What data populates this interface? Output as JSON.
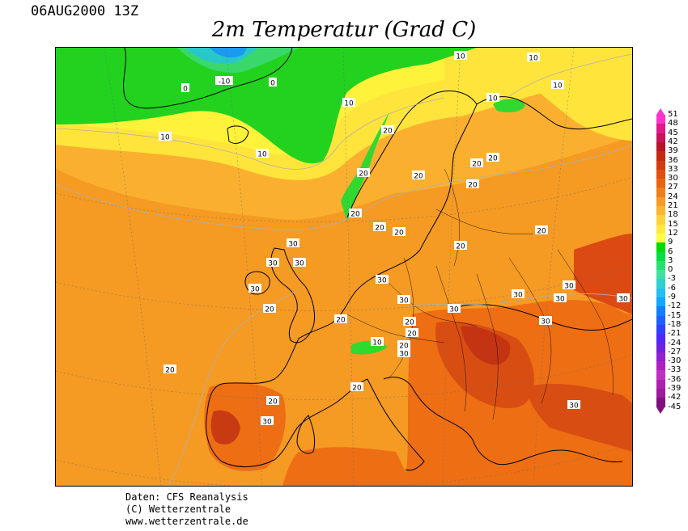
{
  "header": {
    "timestamp": "06AUG2000 13Z",
    "title": "2m Temperatur (Grad C)"
  },
  "footer": {
    "line1": "Daten: CFS Reanalysis",
    "line2": "(C) Wetterzentrale",
    "line3": "www.wetterzentrale.de"
  },
  "legend": {
    "levels": [
      "51",
      "48",
      "45",
      "42",
      "39",
      "36",
      "33",
      "30",
      "27",
      "24",
      "21",
      "18",
      "15",
      "12",
      "9",
      "6",
      "3",
      "0",
      "-3",
      "-6",
      "-9",
      "-12",
      "-15",
      "-18",
      "-21",
      "-24",
      "-27",
      "-30",
      "-33",
      "-36",
      "-39",
      "-42",
      "-45"
    ],
    "colors": [
      "#ff33cc",
      "#e01a8a",
      "#c8145a",
      "#b81428",
      "#c42a10",
      "#d43c10",
      "#e0500c",
      "#ea6410",
      "#f07e1a",
      "#f69a24",
      "#fab430",
      "#ffd23c",
      "#ffe840",
      "#ffff40",
      "#00dc00",
      "#00e040",
      "#28e070",
      "#40e0a0",
      "#30d0d0",
      "#20c0f0",
      "#10a8ff",
      "#1080ff",
      "#2060ff",
      "#3040ff",
      "#5028ff",
      "#7020e0",
      "#9020d0",
      "#b020c0",
      "#c030c0",
      "#b020b0",
      "#a01aa0",
      "#801080"
    ],
    "top_tip_color": "#ff33cc",
    "bottom_tip_color": "#801080"
  },
  "contour_labels": [
    {
      "text": "10"
    },
    {
      "text": "10"
    },
    {
      "text": "-10"
    },
    {
      "text": "0"
    },
    {
      "text": "0"
    },
    {
      "text": "10"
    },
    {
      "text": "10"
    },
    {
      "text": "10"
    },
    {
      "text": "10"
    },
    {
      "text": "20"
    },
    {
      "text": "10"
    },
    {
      "text": "20"
    },
    {
      "text": "20"
    },
    {
      "text": "20"
    },
    {
      "text": "20"
    },
    {
      "text": "20"
    },
    {
      "text": "20"
    },
    {
      "text": "20"
    },
    {
      "text": "20"
    },
    {
      "text": "20"
    },
    {
      "text": "20"
    },
    {
      "text": "30"
    },
    {
      "text": "30"
    },
    {
      "text": "30"
    },
    {
      "text": "30"
    },
    {
      "text": "20"
    },
    {
      "text": "20"
    },
    {
      "text": "30"
    },
    {
      "text": "30"
    },
    {
      "text": "30"
    },
    {
      "text": "30"
    },
    {
      "text": "30"
    },
    {
      "text": "30"
    },
    {
      "text": "30"
    },
    {
      "text": "30"
    },
    {
      "text": "20"
    },
    {
      "text": "20"
    },
    {
      "text": "20"
    },
    {
      "text": "30"
    },
    {
      "text": "20"
    },
    {
      "text": "20"
    },
    {
      "text": "10"
    },
    {
      "text": "20"
    },
    {
      "text": "30"
    },
    {
      "text": "30"
    }
  ]
}
